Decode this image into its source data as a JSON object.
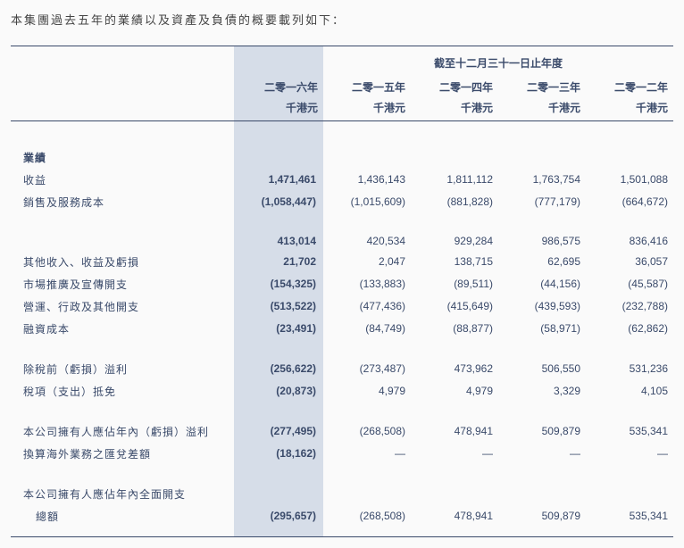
{
  "intro": "本集團過去五年的業績以及資產及負債的概要載列如下：",
  "super_header": "截至十二月三十一日止年度",
  "years": [
    "二零一六年",
    "二零一五年",
    "二零一四年",
    "二零一三年",
    "二零一二年"
  ],
  "unit": "千港元",
  "section_perf": "業績",
  "rows": {
    "revenue": {
      "label": "收益",
      "v": [
        "1,471,461",
        "1,436,143",
        "1,811,112",
        "1,763,754",
        "1,501,088"
      ]
    },
    "cost": {
      "label": "銷售及服務成本",
      "v": [
        "(1,058,447)",
        "(1,015,609)",
        "(881,828)",
        "(777,179)",
        "(664,672)"
      ]
    },
    "gross": {
      "label": "",
      "v": [
        "413,014",
        "420,534",
        "929,284",
        "986,575",
        "836,416"
      ]
    },
    "other_income": {
      "label": "其他收入、收益及虧損",
      "v": [
        "21,702",
        "2,047",
        "138,715",
        "62,695",
        "36,057"
      ]
    },
    "marketing": {
      "label": "市場推廣及宣傳開支",
      "v": [
        "(154,325)",
        "(133,883)",
        "(89,511)",
        "(44,156)",
        "(45,587)"
      ]
    },
    "admin": {
      "label": "營運、行政及其他開支",
      "v": [
        "(513,522)",
        "(477,436)",
        "(415,649)",
        "(439,593)",
        "(232,788)"
      ]
    },
    "finance": {
      "label": "融資成本",
      "v": [
        "(23,491)",
        "(84,749)",
        "(88,877)",
        "(58,971)",
        "(62,862)"
      ]
    },
    "pbt": {
      "label": "除稅前（虧損）溢利",
      "v": [
        "(256,622)",
        "(273,487)",
        "473,962",
        "506,550",
        "531,236"
      ]
    },
    "tax": {
      "label": "稅項（支出）抵免",
      "v": [
        "(20,873)",
        "4,979",
        "4,979",
        "3,329",
        "4,105"
      ]
    },
    "owners_profit": {
      "label": "本公司擁有人應佔年內（虧損）溢利",
      "v": [
        "(277,495)",
        "(268,508)",
        "478,941",
        "509,879",
        "535,341"
      ]
    },
    "fx": {
      "label": "換算海外業務之匯兌差額",
      "v": [
        "(18,162)",
        "—",
        "—",
        "—",
        "—"
      ]
    },
    "total_comp_l1": {
      "label": "本公司擁有人應佔年內全面開支"
    },
    "total_comp_l2": {
      "label": "總額",
      "v": [
        "(295,657)",
        "(268,508)",
        "478,941",
        "509,879",
        "535,341"
      ]
    }
  },
  "colors": {
    "text": "#3a4a6a",
    "highlight_bg": "#d6dde8",
    "border": "#3a4a6a",
    "page_bg": "#fafafa"
  }
}
